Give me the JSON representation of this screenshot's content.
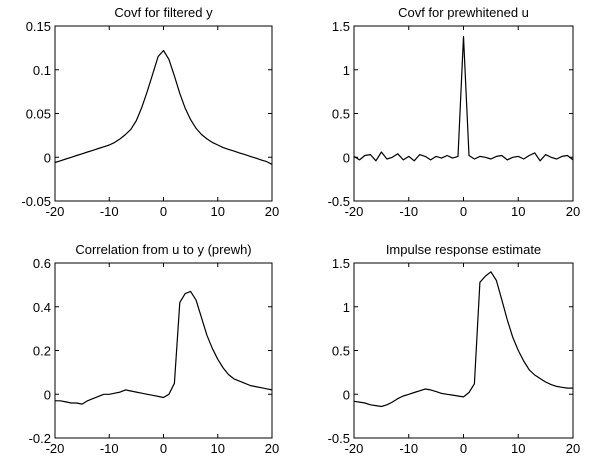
{
  "chart_data": [
    {
      "type": "line",
      "title": "Covf for filtered y",
      "xlabel": "",
      "ylabel": "",
      "xlim": [
        -20,
        20
      ],
      "ylim": [
        -0.05,
        0.15
      ],
      "xticks": [
        -20,
        -10,
        0,
        10,
        20
      ],
      "yticks": [
        -0.05,
        0,
        0.05,
        0.1,
        0.15
      ],
      "xtick_labels": [
        "-20",
        "-10",
        "0",
        "10",
        "20"
      ],
      "ytick_labels": [
        "-0.05",
        "0",
        "0.05",
        "0.1",
        "0.15"
      ],
      "grid": false,
      "series": [
        {
          "x": [
            -20,
            -19,
            -18,
            -17,
            -16,
            -15,
            -14,
            -13,
            -12,
            -11,
            -10,
            -9,
            -8,
            -7,
            -6,
            -5,
            -4,
            -3,
            -2,
            -1,
            0,
            1,
            2,
            3,
            4,
            5,
            6,
            7,
            8,
            9,
            10,
            11,
            12,
            13,
            14,
            15,
            16,
            17,
            18,
            19,
            20
          ],
          "y": [
            -0.006,
            -0.004,
            -0.002,
            0.0,
            0.002,
            0.004,
            0.006,
            0.008,
            0.01,
            0.012,
            0.014,
            0.017,
            0.021,
            0.026,
            0.032,
            0.042,
            0.057,
            0.075,
            0.095,
            0.115,
            0.122,
            0.112,
            0.093,
            0.073,
            0.056,
            0.043,
            0.033,
            0.026,
            0.021,
            0.017,
            0.014,
            0.011,
            0.009,
            0.007,
            0.005,
            0.003,
            0.001,
            -0.001,
            -0.003,
            -0.005,
            -0.008
          ]
        }
      ]
    },
    {
      "type": "line",
      "title": "Covf for prewhitened u",
      "xlabel": "",
      "ylabel": "",
      "xlim": [
        -20,
        20
      ],
      "ylim": [
        -0.5,
        1.5
      ],
      "xticks": [
        -20,
        -10,
        0,
        10,
        20
      ],
      "yticks": [
        -0.5,
        0,
        0.5,
        1,
        1.5
      ],
      "xtick_labels": [
        "-20",
        "-10",
        "0",
        "10",
        "20"
      ],
      "ytick_labels": [
        "-0.5",
        "0",
        "0.5",
        "1",
        "1.5"
      ],
      "grid": false,
      "series": [
        {
          "x": [
            -20,
            -19,
            -18,
            -17,
            -16,
            -15,
            -14,
            -13,
            -12,
            -11,
            -10,
            -9,
            -8,
            -7,
            -6,
            -5,
            -4,
            -3,
            -2,
            -1,
            0,
            1,
            2,
            3,
            4,
            5,
            6,
            7,
            8,
            9,
            10,
            11,
            12,
            13,
            14,
            15,
            16,
            17,
            18,
            19,
            20
          ],
          "y": [
            0.01,
            -0.03,
            0.02,
            0.03,
            -0.04,
            0.06,
            -0.02,
            0.0,
            0.04,
            -0.03,
            0.01,
            -0.04,
            0.03,
            0.01,
            -0.03,
            0.01,
            -0.01,
            0.02,
            -0.01,
            0.01,
            1.38,
            0.02,
            -0.02,
            0.01,
            0.0,
            -0.02,
            0.01,
            0.02,
            -0.03,
            0.0,
            0.01,
            -0.02,
            0.02,
            0.05,
            -0.04,
            0.03,
            0.0,
            -0.02,
            0.01,
            0.02,
            -0.03
          ]
        }
      ]
    },
    {
      "type": "line",
      "title": "Correlation from u to y (prewh)",
      "xlabel": "",
      "ylabel": "",
      "xlim": [
        -20,
        20
      ],
      "ylim": [
        -0.2,
        0.6
      ],
      "xticks": [
        -20,
        -10,
        0,
        10,
        20
      ],
      "yticks": [
        -0.2,
        0,
        0.2,
        0.4,
        0.6
      ],
      "xtick_labels": [
        "-20",
        "-10",
        "0",
        "10",
        "20"
      ],
      "ytick_labels": [
        "-0.2",
        "0",
        "0.2",
        "0.4",
        "0.6"
      ],
      "grid": false,
      "series": [
        {
          "x": [
            -20,
            -19,
            -18,
            -17,
            -16,
            -15,
            -14,
            -13,
            -12,
            -11,
            -10,
            -9,
            -8,
            -7,
            -6,
            -5,
            -4,
            -3,
            -2,
            -1,
            0,
            1,
            2,
            3,
            4,
            5,
            6,
            7,
            8,
            9,
            10,
            11,
            12,
            13,
            14,
            15,
            16,
            17,
            18,
            19,
            20
          ],
          "y": [
            -0.03,
            -0.03,
            -0.035,
            -0.04,
            -0.04,
            -0.045,
            -0.03,
            -0.02,
            -0.01,
            0.0,
            0.0,
            0.005,
            0.01,
            0.02,
            0.015,
            0.01,
            0.005,
            0.0,
            -0.005,
            -0.01,
            -0.015,
            0.0,
            0.05,
            0.42,
            0.46,
            0.47,
            0.43,
            0.35,
            0.27,
            0.21,
            0.16,
            0.12,
            0.09,
            0.07,
            0.06,
            0.05,
            0.04,
            0.035,
            0.03,
            0.025,
            0.02
          ]
        }
      ]
    },
    {
      "type": "line",
      "title": "Impulse response estimate",
      "xlabel": "",
      "ylabel": "",
      "xlim": [
        -20,
        20
      ],
      "ylim": [
        -0.5,
        1.5
      ],
      "xticks": [
        -20,
        -10,
        0,
        10,
        20
      ],
      "yticks": [
        -0.5,
        0,
        0.5,
        1,
        1.5
      ],
      "xtick_labels": [
        "-20",
        "-10",
        "0",
        "10",
        "20"
      ],
      "ytick_labels": [
        "-0.5",
        "0",
        "0.5",
        "1",
        "1.5"
      ],
      "grid": false,
      "series": [
        {
          "x": [
            -20,
            -19,
            -18,
            -17,
            -16,
            -15,
            -14,
            -13,
            -12,
            -11,
            -10,
            -9,
            -8,
            -7,
            -6,
            -5,
            -4,
            -3,
            -2,
            -1,
            0,
            1,
            2,
            3,
            4,
            5,
            6,
            7,
            8,
            9,
            10,
            11,
            12,
            13,
            14,
            15,
            16,
            17,
            18,
            19,
            20
          ],
          "y": [
            -0.08,
            -0.09,
            -0.1,
            -0.12,
            -0.13,
            -0.14,
            -0.12,
            -0.09,
            -0.05,
            -0.02,
            0.0,
            0.02,
            0.04,
            0.06,
            0.05,
            0.03,
            0.01,
            0.0,
            -0.01,
            -0.02,
            -0.03,
            0.02,
            0.12,
            1.28,
            1.35,
            1.4,
            1.3,
            1.08,
            0.85,
            0.65,
            0.5,
            0.38,
            0.28,
            0.22,
            0.18,
            0.14,
            0.11,
            0.09,
            0.08,
            0.07,
            0.07
          ]
        }
      ]
    }
  ]
}
